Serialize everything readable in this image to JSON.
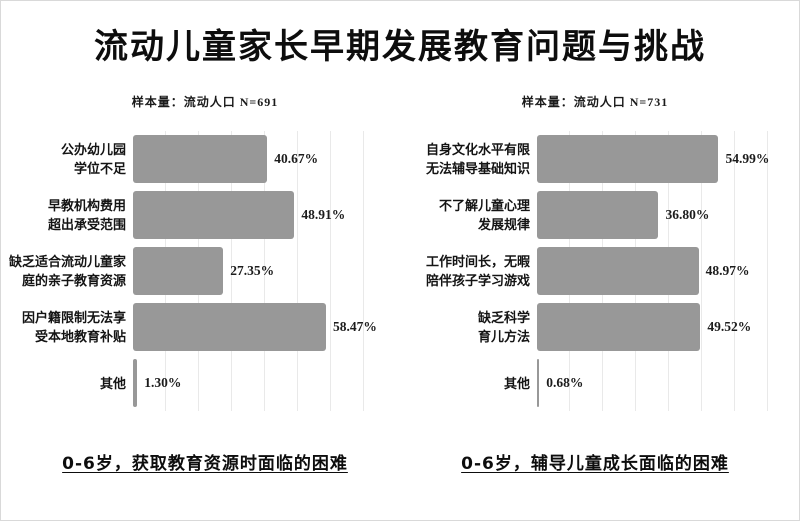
{
  "page": {
    "title": "流动儿童家长早期发展教育问题与挑战"
  },
  "chart_data": [
    {
      "type": "bar",
      "orientation": "horizontal",
      "sample_label": "样本量：流动人口 N=691",
      "caption": "0-6岁，获取教育资源时面临的困难",
      "categories": [
        "公办幼儿园学位不足",
        "早教机构费用超出承受范围",
        "缺乏适合流动儿童家庭的亲子教育资源",
        "因户籍限制无法享受本地教育补贴",
        "其他"
      ],
      "category_lines": [
        [
          "公办幼儿园",
          "学位不足"
        ],
        [
          "早教机构费用",
          "超出承受范围"
        ],
        [
          "缺乏适合流动儿童家",
          "庭的亲子教育资源"
        ],
        [
          "因户籍限制无法享",
          "受本地教育补贴"
        ],
        [
          "其他"
        ]
      ],
      "values": [
        40.67,
        48.91,
        27.35,
        58.47,
        1.3
      ],
      "value_labels": [
        "40.67%",
        "48.91%",
        "27.35%",
        "58.47%",
        "1.30%"
      ],
      "xlim": [
        0,
        60
      ],
      "grid": true,
      "legend": "none",
      "bar_color": "#989898",
      "gridline_color": "#e9e9e9"
    },
    {
      "type": "bar",
      "orientation": "horizontal",
      "sample_label": "样本量：流动人口 N=731",
      "caption": "0-6岁，辅导儿童成长面临的困难",
      "categories": [
        "自身文化水平有限无法辅导基础知识",
        "不了解儿童心理发展规律",
        "工作时间长，无暇陪伴孩子学习游戏",
        "缺乏科学育儿方法",
        "其他"
      ],
      "category_lines": [
        [
          "自身文化水平有限",
          "无法辅导基础知识"
        ],
        [
          "不了解儿童心理",
          "发展规律"
        ],
        [
          "工作时间长，无暇",
          "陪伴孩子学习游戏"
        ],
        [
          "缺乏科学",
          "育儿方法"
        ],
        [
          "其他"
        ]
      ],
      "values": [
        54.99,
        36.8,
        48.97,
        49.52,
        0.68
      ],
      "value_labels": [
        "54.99%",
        "36.80%",
        "48.97%",
        "49.52%",
        "0.68%"
      ],
      "xlim": [
        0,
        60
      ],
      "grid": true,
      "legend": "none",
      "bar_color": "#989898",
      "gridline_color": "#e9e9e9"
    }
  ]
}
